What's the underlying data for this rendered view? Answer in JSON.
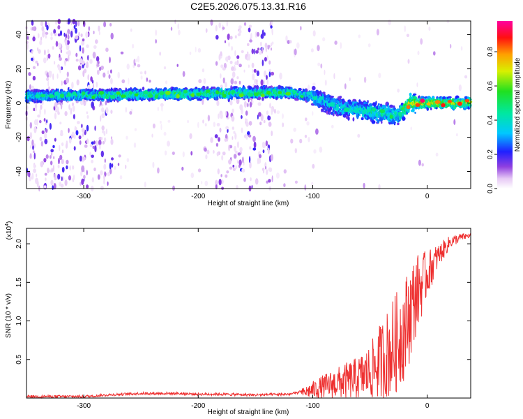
{
  "title": "C2E5.2026.075.13.31.R16",
  "chart_data": [
    {
      "type": "heatmap",
      "xlabel": "Height of straight line (km)",
      "ylabel": "Frequency (Hz)",
      "xlim": [
        -350,
        38
      ],
      "ylim": [
        -50,
        48
      ],
      "xticks": [
        -300,
        -200,
        -100,
        0
      ],
      "yticks": [
        -40,
        -20,
        0,
        20,
        40
      ],
      "colorbar": {
        "label": "Normalized spectral amplitude",
        "range": [
          0,
          0.98
        ],
        "ticks": [
          0.0,
          0.2,
          0.4,
          0.6,
          0.8
        ],
        "tick_labels": [
          "0.0",
          "0.2",
          "0.4",
          "0.6",
          "0.8"
        ],
        "colormap": "rainbow: white, violet, blue, cyan, green, yellow, orange, red, magenta"
      },
      "ridge": {
        "description": "concentrated spectral energy band",
        "x": [
          -350,
          -300,
          -250,
          -200,
          -150,
          -120,
          -100,
          -80,
          -60,
          -40,
          -25,
          -15,
          0,
          20,
          38
        ],
        "y": [
          4,
          4.5,
          5,
          5.5,
          6,
          6,
          4,
          -2,
          -4,
          -6,
          -7,
          0,
          0,
          0,
          0
        ],
        "peak_amplitude": [
          0.45,
          0.55,
          0.6,
          0.62,
          0.6,
          0.6,
          0.45,
          0.4,
          0.5,
          0.55,
          0.5,
          0.95,
          0.95,
          0.9,
          0.85
        ]
      },
      "noise_regions_x": [
        [
          -350,
          -275
        ],
        [
          -185,
          -135
        ]
      ],
      "grid": false
    },
    {
      "type": "line",
      "xlabel": "Height of straight line (km)",
      "ylabel": "SNR (10 * v/v)",
      "y_multiplier": "(x10^4)",
      "xlim": [
        -350,
        38
      ],
      "ylim": [
        0,
        2.2
      ],
      "xticks": [
        -300,
        -200,
        -100,
        0
      ],
      "yticks": [
        0.5,
        1.0,
        1.5,
        2.0
      ],
      "ytick_labels": [
        "0.5",
        "1.0",
        "1.5",
        "2.0"
      ],
      "series": [
        {
          "color": "#ee3030",
          "x": [
            -350,
            -300,
            -280,
            -250,
            -220,
            -200,
            -180,
            -150,
            -120,
            -110,
            -100,
            -90,
            -80,
            -70,
            -60,
            -50,
            -40,
            -30,
            -20,
            -15,
            -10,
            0,
            10,
            20,
            30,
            38
          ],
          "y": [
            0.02,
            0.02,
            0.04,
            0.06,
            0.06,
            0.05,
            0.05,
            0.04,
            0.05,
            0.08,
            0.14,
            0.2,
            0.25,
            0.3,
            0.35,
            0.45,
            0.65,
            0.85,
            1.1,
            1.3,
            1.5,
            1.7,
            1.9,
            2.05,
            2.1,
            2.12
          ],
          "noise_fraction": [
            0.05,
            0.05,
            0.3,
            0.4,
            0.4,
            0.4,
            0.3,
            0.2,
            0.4,
            0.9,
            1.0,
            1.0,
            1.0,
            1.0,
            1.0,
            1.0,
            1.0,
            0.95,
            0.75,
            0.6,
            0.45,
            0.22,
            0.1,
            0.05,
            0.03,
            0.02
          ]
        }
      ],
      "grid": false
    }
  ]
}
